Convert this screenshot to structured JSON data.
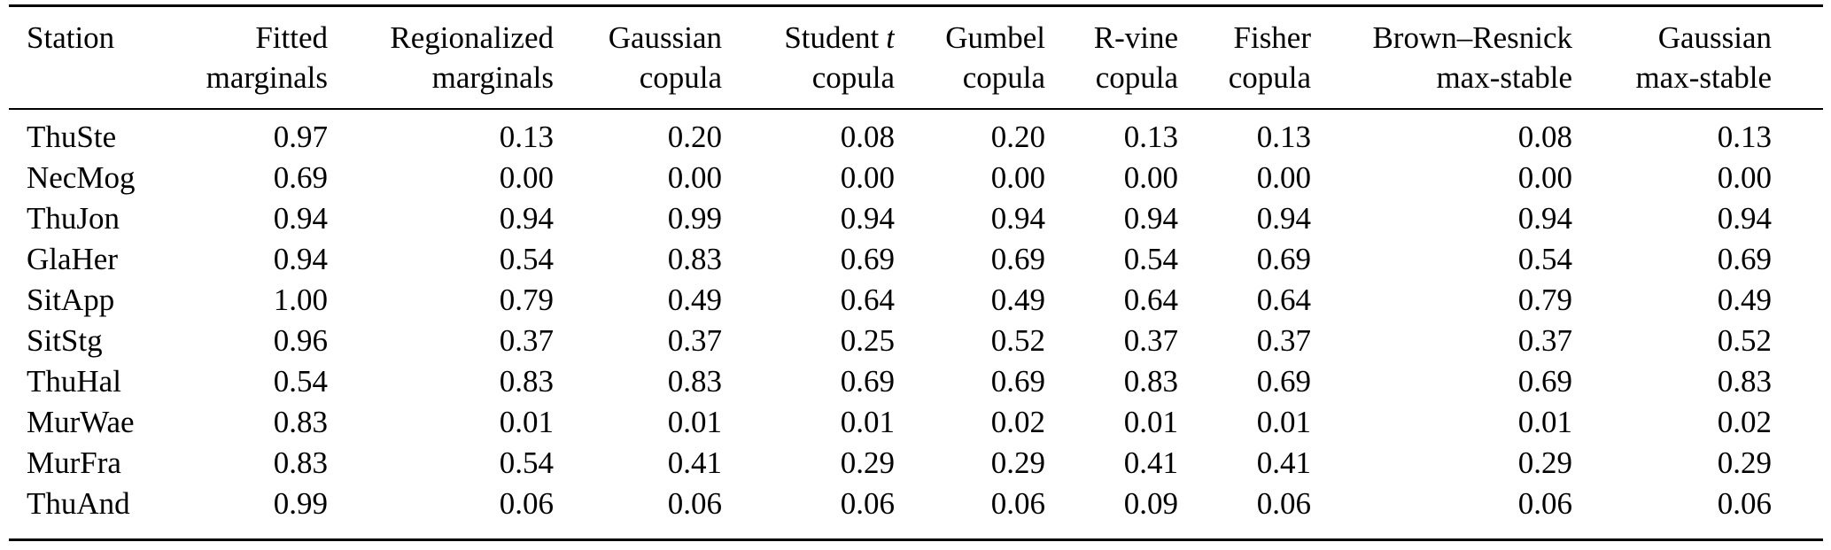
{
  "page": {
    "background": "#ffffff",
    "text_color": "#000000",
    "rule_color": "#000000"
  },
  "table": {
    "columns": [
      {
        "l1": "Station",
        "l2": ""
      },
      {
        "l1": "Fitted",
        "l2": "marginals"
      },
      {
        "l1": "Regionalized",
        "l2": "marginals"
      },
      {
        "l1": "Gaussian",
        "l2": "copula"
      },
      {
        "l1": "Student",
        "l1_italic": "t",
        "l2": "copula"
      },
      {
        "l1": "Gumbel",
        "l2": "copula"
      },
      {
        "l1": "R-vine",
        "l2": "copula"
      },
      {
        "l1": "Fisher",
        "l2": "copula"
      },
      {
        "l1": "Brown–Resnick",
        "l2": "max-stable"
      },
      {
        "l1": "Gaussian",
        "l2": "max-stable"
      }
    ],
    "rows": [
      {
        "station": "ThuSte",
        "values": [
          "0.97",
          "0.13",
          "0.20",
          "0.08",
          "0.20",
          "0.13",
          "0.13",
          "0.08",
          "0.13"
        ]
      },
      {
        "station": "NecMog",
        "values": [
          "0.69",
          "0.00",
          "0.00",
          "0.00",
          "0.00",
          "0.00",
          "0.00",
          "0.00",
          "0.00"
        ]
      },
      {
        "station": "ThuJon",
        "values": [
          "0.94",
          "0.94",
          "0.99",
          "0.94",
          "0.94",
          "0.94",
          "0.94",
          "0.94",
          "0.94"
        ]
      },
      {
        "station": "GlaHer",
        "values": [
          "0.94",
          "0.54",
          "0.83",
          "0.69",
          "0.69",
          "0.54",
          "0.69",
          "0.54",
          "0.69"
        ]
      },
      {
        "station": "SitApp",
        "values": [
          "1.00",
          "0.79",
          "0.49",
          "0.64",
          "0.49",
          "0.64",
          "0.64",
          "0.79",
          "0.49"
        ]
      },
      {
        "station": "SitStg",
        "values": [
          "0.96",
          "0.37",
          "0.37",
          "0.25",
          "0.52",
          "0.37",
          "0.37",
          "0.37",
          "0.52"
        ]
      },
      {
        "station": "ThuHal",
        "values": [
          "0.54",
          "0.83",
          "0.83",
          "0.69",
          "0.69",
          "0.83",
          "0.69",
          "0.69",
          "0.83"
        ]
      },
      {
        "station": "MurWae",
        "values": [
          "0.83",
          "0.01",
          "0.01",
          "0.01",
          "0.02",
          "0.01",
          "0.01",
          "0.01",
          "0.02"
        ]
      },
      {
        "station": "MurFra",
        "values": [
          "0.83",
          "0.54",
          "0.41",
          "0.29",
          "0.29",
          "0.41",
          "0.41",
          "0.29",
          "0.29"
        ]
      },
      {
        "station": "ThuAnd",
        "values": [
          "0.99",
          "0.06",
          "0.06",
          "0.06",
          "0.06",
          "0.09",
          "0.06",
          "0.06",
          "0.06"
        ]
      }
    ]
  }
}
